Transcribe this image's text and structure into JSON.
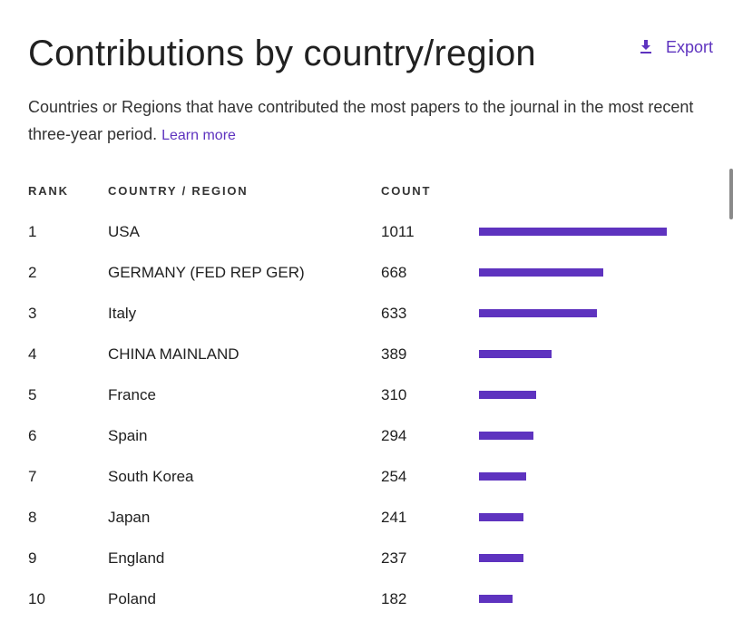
{
  "header": {
    "title": "Contributions by country/region",
    "export_label": "Export",
    "description": "Countries or Regions that have contributed the most papers to the journal in the most recent three-year period.",
    "learn_more": "Learn more"
  },
  "table": {
    "columns": [
      "RANK",
      "COUNTRY / REGION",
      "COUNT"
    ],
    "rows": [
      {
        "rank": "1",
        "country": "USA",
        "count": "1011"
      },
      {
        "rank": "2",
        "country": "GERMANY (FED REP GER)",
        "count": "668"
      },
      {
        "rank": "3",
        "country": "Italy",
        "count": "633"
      },
      {
        "rank": "4",
        "country": "CHINA MAINLAND",
        "count": "389"
      },
      {
        "rank": "5",
        "country": "France",
        "count": "310"
      },
      {
        "rank": "6",
        "country": "Spain",
        "count": "294"
      },
      {
        "rank": "7",
        "country": "South Korea",
        "count": "254"
      },
      {
        "rank": "8",
        "country": "Japan",
        "count": "241"
      },
      {
        "rank": "9",
        "country": "England",
        "count": "237"
      },
      {
        "rank": "10",
        "country": "Poland",
        "count": "182"
      }
    ]
  },
  "colors": {
    "accent": "#5e33bf",
    "text": "#212121"
  },
  "icons": {
    "export": "download-icon"
  },
  "chart_data": {
    "type": "bar",
    "orientation": "horizontal",
    "categories": [
      "USA",
      "GERMANY (FED REP GER)",
      "Italy",
      "CHINA MAINLAND",
      "France",
      "Spain",
      "South Korea",
      "Japan",
      "England",
      "Poland"
    ],
    "values": [
      1011,
      668,
      633,
      389,
      310,
      294,
      254,
      241,
      237,
      182
    ],
    "title": "Contributions by country/region",
    "xlabel": "",
    "ylabel": "",
    "xlim": [
      0,
      1011
    ],
    "grid": false,
    "legend": "none"
  }
}
